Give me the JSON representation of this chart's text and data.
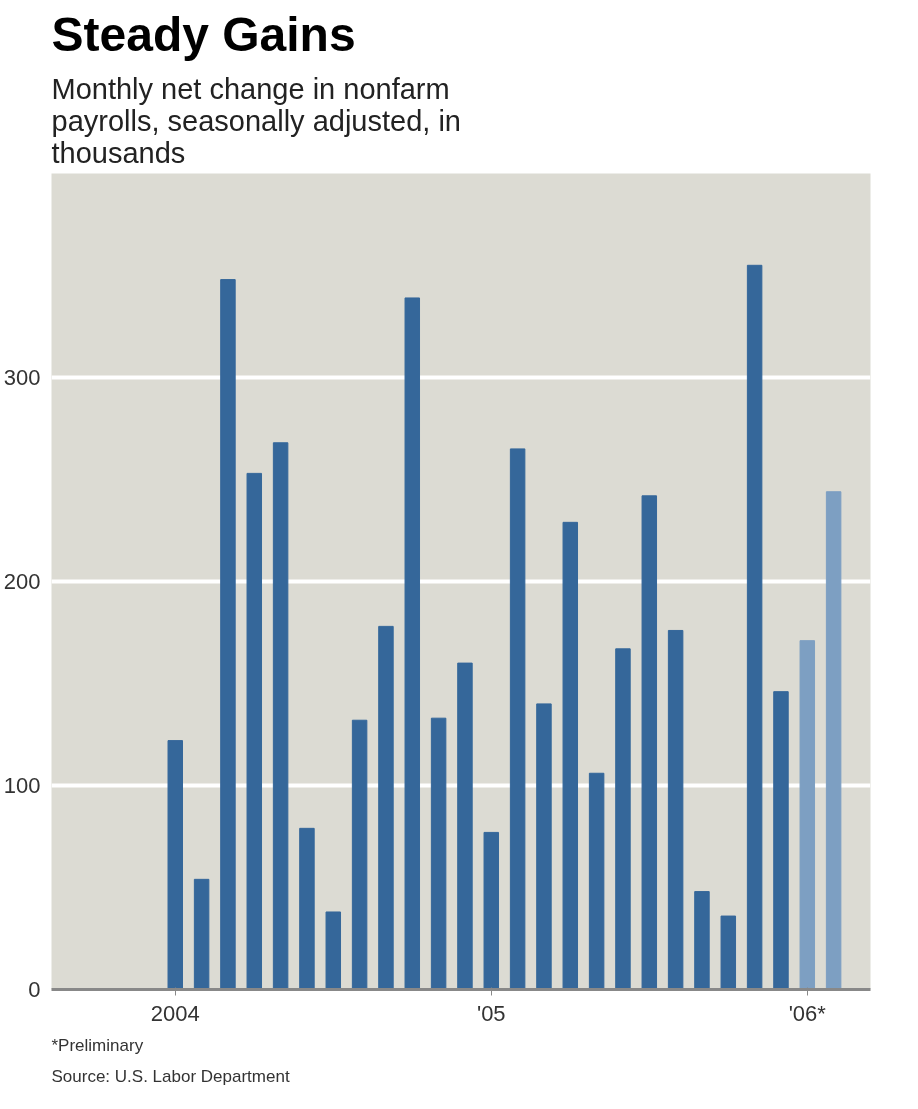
{
  "chart_data": {
    "type": "bar",
    "title": "Steady Gains",
    "subtitle": "Monthly net change in nonfarm payrolls, seasonally adjusted, in thousands",
    "categories": [
      "2004",
      null,
      null,
      null,
      null,
      null,
      null,
      null,
      null,
      null,
      null,
      null,
      "'05",
      null,
      null,
      null,
      null,
      null,
      null,
      null,
      null,
      null,
      null,
      null,
      "'06*",
      null
    ],
    "values": [
      122,
      54,
      348,
      253,
      268,
      79,
      38,
      132,
      178,
      339,
      133,
      160,
      77,
      265,
      140,
      229,
      106,
      167,
      242,
      176,
      48,
      36,
      355,
      146,
      171,
      244
    ],
    "colors": [
      "#35679a",
      "#35679a",
      "#35679a",
      "#35679a",
      "#35679a",
      "#35679a",
      "#35679a",
      "#35679a",
      "#35679a",
      "#35679a",
      "#35679a",
      "#35679a",
      "#35679a",
      "#35679a",
      "#35679a",
      "#35679a",
      "#35679a",
      "#35679a",
      "#35679a",
      "#35679a",
      "#35679a",
      "#35679a",
      "#35679a",
      "#35679a",
      "#7d9fc2",
      "#7d9fc2"
    ],
    "ylim": [
      0,
      400
    ],
    "yticks": [
      0,
      100,
      200,
      300
    ],
    "grid": "y",
    "annotations": [
      "*Preliminary",
      "Source: U.S. Labor Department"
    ]
  }
}
